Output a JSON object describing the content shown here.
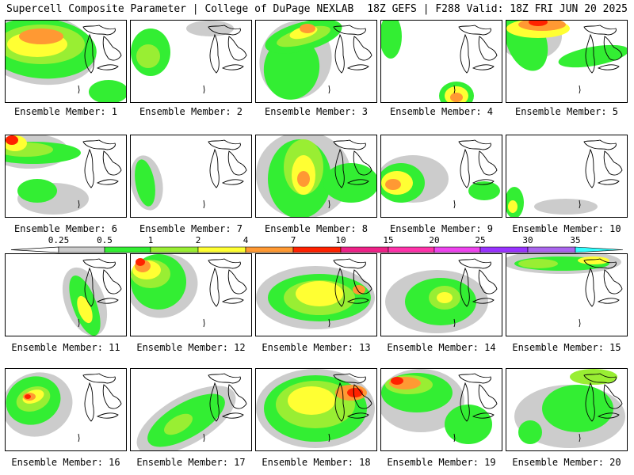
{
  "header": {
    "title_left": "Supercell Composite Parameter | College of DuPage NEXLAB",
    "title_right": "18Z GEFS | F288 Valid: 18Z FRI JUN 20 2025"
  },
  "panels": [
    {
      "label": "Ensemble Member: 1"
    },
    {
      "label": "Ensemble Member: 2"
    },
    {
      "label": "Ensemble Member: 3"
    },
    {
      "label": "Ensemble Member: 4"
    },
    {
      "label": "Ensemble Member: 5"
    },
    {
      "label": "Ensemble Member: 6"
    },
    {
      "label": "Ensemble Member: 7"
    },
    {
      "label": "Ensemble Member: 8"
    },
    {
      "label": "Ensemble Member: 9"
    },
    {
      "label": "Ensemble Member: 10"
    },
    {
      "label": "Ensemble Member: 11"
    },
    {
      "label": "Ensemble Member: 12"
    },
    {
      "label": "Ensemble Member: 13"
    },
    {
      "label": "Ensemble Member: 14"
    },
    {
      "label": "Ensemble Member: 15"
    },
    {
      "label": "Ensemble Member: 16"
    },
    {
      "label": "Ensemble Member: 17"
    },
    {
      "label": "Ensemble Member: 18"
    },
    {
      "label": "Ensemble Member: 19"
    },
    {
      "label": "Ensemble Member: 20"
    }
  ],
  "colorbar": {
    "ticks": [
      "0.25",
      "0.5",
      "1",
      "2",
      "4",
      "7",
      "10",
      "15",
      "20",
      "25",
      "30",
      "35"
    ],
    "colors": [
      "#cccccc",
      "#33ee33",
      "#99ee33",
      "#ffff33",
      "#ff9933",
      "#ff2200",
      "#ee2288",
      "#ff33aa",
      "#ee44ee",
      "#9933ff",
      "#aa66ee",
      "#33ffff"
    ]
  },
  "styles": {
    "colors": {
      "gray": "#cccccc",
      "green": "#33ee33",
      "lime": "#99ee33",
      "yellow": "#ffff33",
      "orange": "#ff9933",
      "red": "#ff2200",
      "darkred": "#cc0000"
    }
  }
}
